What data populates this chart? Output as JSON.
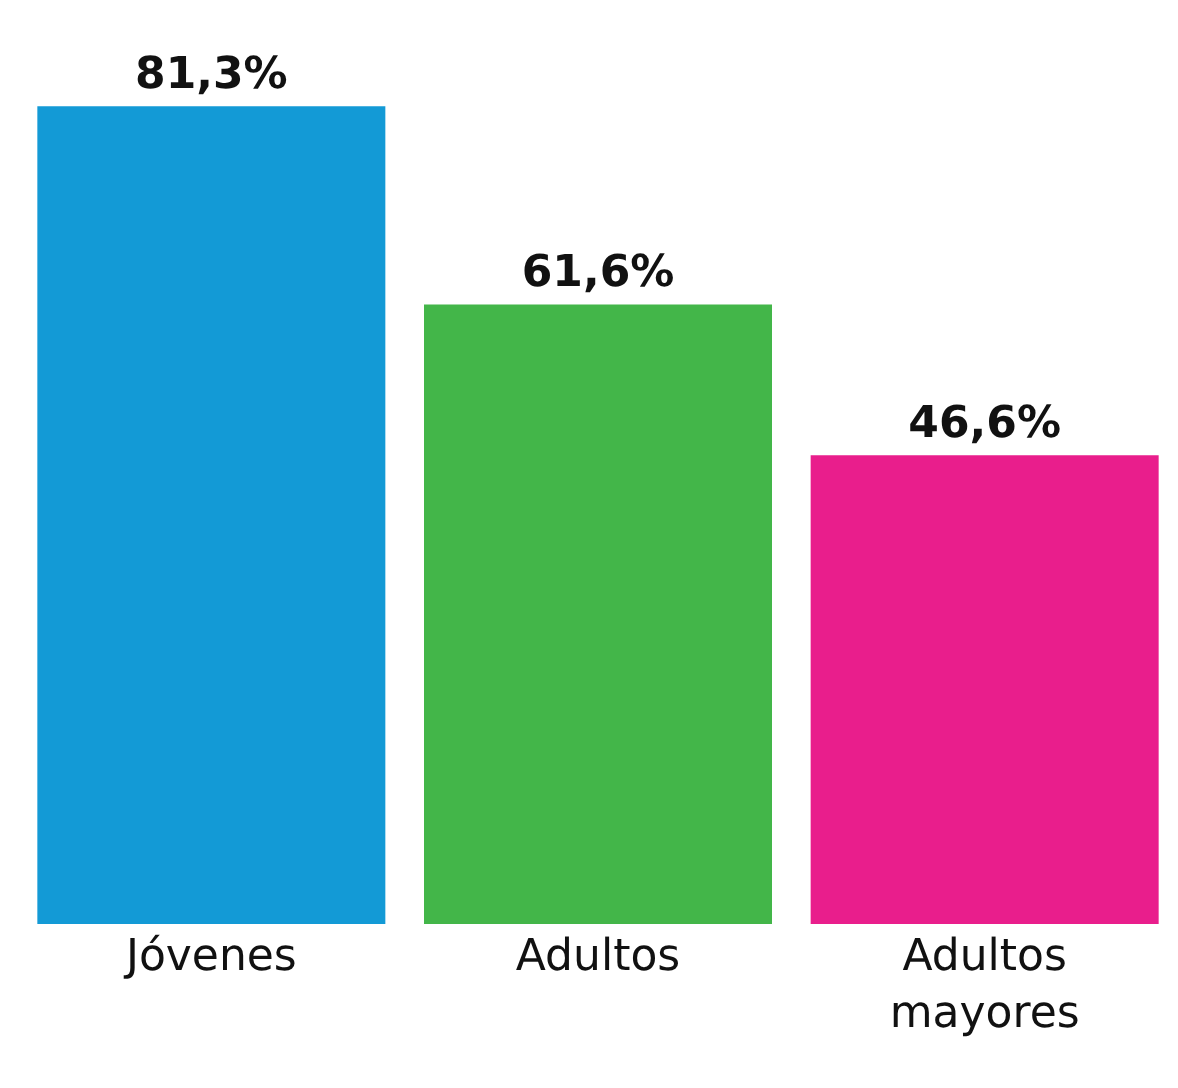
{
  "chart_data": {
    "type": "bar",
    "categories": [
      "Jóvenes",
      "Adultos",
      "Adultos mayores"
    ],
    "values": [
      81.3,
      61.6,
      46.6
    ],
    "value_labels": [
      "81,3%",
      "61,6%",
      "46,6%"
    ],
    "colors": [
      "#139ad6",
      "#43b649",
      "#e91e8c"
    ],
    "legend": false
  }
}
